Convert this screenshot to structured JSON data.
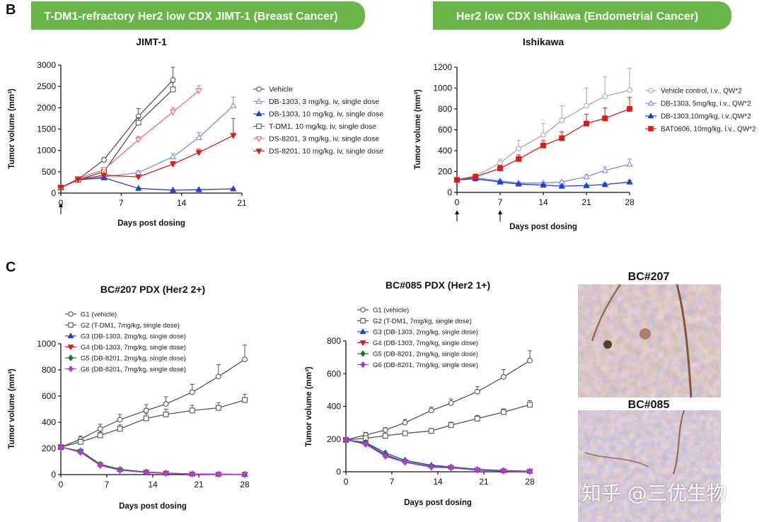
{
  "panels": {
    "B": "B",
    "C": "C"
  },
  "banners": [
    {
      "text": "T-DM1-refractory Her2 low CDX JIMT-1 (Breast Cancer)"
    },
    {
      "text": "Her2 low CDX Ishikawa (Endometrial Cancer)"
    }
  ],
  "ihc": {
    "top_label": "BC#207",
    "bottom_label": "BC#085"
  },
  "watermark": "知乎 @三优生物",
  "colors": {
    "banner": "#6ab547",
    "black": "#444444",
    "blue": "#1f3fd6",
    "lightblue": "#7c8ee6",
    "red": "#e01a1a",
    "lightred": "#f06a6a",
    "green": "#1a7a2a",
    "purple": "#b23ad8"
  },
  "chart_data": [
    {
      "id": "jimt",
      "type": "line",
      "title": "JIMT-1",
      "xlabel": "Days post dosing",
      "ylabel": "Tumor volume (mm³)",
      "xlim": [
        0,
        21
      ],
      "ylim": [
        0,
        3000
      ],
      "xticks": [
        0,
        7,
        14,
        21
      ],
      "yticks": [
        0,
        500,
        1000,
        1500,
        2000,
        2500,
        3000
      ],
      "dosing_arrows": [
        0
      ],
      "series": [
        {
          "name": "Vehicle",
          "color": "#555555",
          "marker": "circle-open",
          "x": [
            0,
            2,
            5,
            9,
            13
          ],
          "y": [
            130,
            320,
            780,
            1800,
            2650
          ],
          "err": [
            15,
            30,
            50,
            180,
            300
          ]
        },
        {
          "name": "DB-1303, 3  mg/kg, iv, single dose",
          "color": "#7c8ee6",
          "marker": "triangle-up-open",
          "x": [
            0,
            2,
            5,
            9,
            13,
            16,
            20
          ],
          "y": [
            130,
            320,
            380,
            480,
            850,
            1300,
            2050
          ],
          "err": [
            15,
            25,
            30,
            40,
            80,
            120,
            200
          ]
        },
        {
          "name": "DB-1303, 10 mg/kg, iv, single dose",
          "color": "#1f3fd6",
          "marker": "triangle-up",
          "x": [
            0,
            2,
            5,
            9,
            13,
            16,
            20
          ],
          "y": [
            130,
            310,
            360,
            110,
            70,
            80,
            100
          ],
          "err": [
            15,
            20,
            25,
            15,
            10,
            10,
            15
          ]
        },
        {
          "name": "T-DM1, 10 mg/kg, iv, single dose",
          "color": "#555555",
          "marker": "square-open",
          "x": [
            0,
            2,
            5,
            9,
            13
          ],
          "y": [
            130,
            310,
            500,
            1650,
            2430
          ],
          "err": [
            15,
            25,
            40,
            120,
            160
          ]
        },
        {
          "name": "DS-8201, 3 mg/kg, iv, single dose",
          "color": "#f06a6a",
          "marker": "triangle-down-open",
          "x": [
            0,
            2,
            5,
            9,
            13,
            16
          ],
          "y": [
            130,
            340,
            550,
            1250,
            1900,
            2400
          ],
          "err": [
            15,
            25,
            40,
            80,
            100,
            120
          ]
        },
        {
          "name": "DS-8201, 10 mg/kg, iv, single dose",
          "color": "#e01a1a",
          "marker": "triangle-down",
          "x": [
            0,
            2,
            5,
            9,
            13,
            16,
            20
          ],
          "y": [
            130,
            320,
            420,
            380,
            680,
            950,
            1350
          ],
          "err": [
            15,
            25,
            35,
            40,
            60,
            80,
            400
          ]
        }
      ]
    },
    {
      "id": "ishikawa",
      "type": "line",
      "title": "Ishikawa",
      "xlabel": "Days post dosing",
      "ylabel": "Tumor volume (mm³)",
      "xlim": [
        0,
        28
      ],
      "ylim": [
        0,
        1200
      ],
      "xticks": [
        0,
        7,
        14,
        21,
        28
      ],
      "yticks": [
        0,
        200,
        400,
        600,
        800,
        1000,
        1200
      ],
      "dosing_arrows": [
        0,
        7
      ],
      "series": [
        {
          "name": "Vehicle control, i.v., QW*2",
          "color": "#aaaaaa",
          "marker": "circle-open",
          "x": [
            0,
            3,
            7,
            10,
            14,
            17,
            21,
            24,
            28
          ],
          "y": [
            120,
            160,
            280,
            420,
            550,
            690,
            830,
            920,
            980
          ],
          "err": [
            10,
            15,
            40,
            80,
            110,
            140,
            170,
            190,
            210
          ]
        },
        {
          "name": "DB-1303, 5mg/kg, i.v., QW*2",
          "color": "#7c8ee6",
          "marker": "triangle-up-open",
          "x": [
            0,
            3,
            7,
            10,
            14,
            17,
            21,
            24,
            28
          ],
          "y": [
            120,
            140,
            110,
            90,
            90,
            100,
            150,
            210,
            270
          ],
          "err": [
            10,
            12,
            12,
            10,
            10,
            12,
            20,
            35,
            50
          ]
        },
        {
          "name": "DB-1303,10mg/kg, i.v.,QW*2",
          "color": "#1f3fd6",
          "marker": "triangle-up",
          "x": [
            0,
            3,
            7,
            10,
            14,
            17,
            21,
            24,
            28
          ],
          "y": [
            120,
            130,
            100,
            80,
            70,
            60,
            65,
            75,
            100
          ],
          "err": [
            10,
            10,
            10,
            8,
            8,
            8,
            8,
            10,
            15
          ]
        },
        {
          "name": "BAT0606, 10mg/kg, i.v., QW*2",
          "color": "#e01a1a",
          "marker": "square",
          "x": [
            0,
            3,
            7,
            10,
            14,
            17,
            21,
            24,
            28
          ],
          "y": [
            120,
            150,
            230,
            320,
            450,
            520,
            660,
            710,
            800
          ],
          "err": [
            10,
            15,
            30,
            40,
            50,
            60,
            90,
            100,
            110
          ]
        }
      ]
    },
    {
      "id": "bc207",
      "type": "line",
      "title": "BC#207 PDX (Her2 2+)",
      "xlabel": "Days post dosing",
      "ylabel": "Tumor volume (mm³)",
      "xlim": [
        0,
        28
      ],
      "ylim": [
        0,
        1000
      ],
      "xticks": [
        0,
        7,
        14,
        21,
        28
      ],
      "yticks": [
        0,
        200,
        400,
        600,
        800,
        1000
      ],
      "dosing_arrows": [],
      "series": [
        {
          "name": "G1 (vehicle)",
          "color": "#555555",
          "marker": "circle-open",
          "x": [
            0,
            3,
            6,
            9,
            13,
            16,
            20,
            24,
            28
          ],
          "y": [
            210,
            270,
            350,
            420,
            490,
            540,
            630,
            750,
            880
          ],
          "err": [
            10,
            25,
            35,
            40,
            45,
            55,
            60,
            90,
            110
          ]
        },
        {
          "name": "G2 (T-DM1, 7mg/kg, single dose)",
          "color": "#555555",
          "marker": "square-open",
          "x": [
            0,
            3,
            6,
            9,
            13,
            16,
            20,
            24,
            28
          ],
          "y": [
            210,
            250,
            300,
            350,
            430,
            460,
            490,
            510,
            570
          ],
          "err": [
            10,
            20,
            25,
            30,
            35,
            40,
            40,
            40,
            45
          ]
        },
        {
          "name": "G3 (DB-1303, 2mg/kg, single dose)",
          "color": "#1f3fd6",
          "marker": "triangle-up",
          "x": [
            0,
            3,
            6,
            9,
            13,
            16,
            20,
            24,
            28
          ],
          "y": [
            210,
            180,
            80,
            40,
            20,
            12,
            5,
            3,
            2
          ],
          "err": [
            10,
            15,
            10,
            6,
            4,
            3,
            2,
            1,
            1
          ]
        },
        {
          "name": "G4 (DB-1303, 7mg/kg, single dose)",
          "color": "#e01a1a",
          "marker": "triangle-down",
          "x": [
            0,
            3,
            6,
            9,
            13,
            16,
            20,
            24,
            28
          ],
          "y": [
            210,
            175,
            75,
            35,
            18,
            10,
            4,
            2,
            1
          ],
          "err": [
            10,
            12,
            8,
            5,
            3,
            2,
            1,
            1,
            1
          ]
        },
        {
          "name": "G5 (DB-8201, 2mg/kg, single dose)",
          "color": "#1a7a2a",
          "marker": "diamond",
          "x": [
            0,
            3,
            6,
            9,
            13,
            16,
            20,
            24,
            28
          ],
          "y": [
            210,
            178,
            78,
            38,
            19,
            11,
            5,
            3,
            2
          ],
          "err": [
            10,
            12,
            8,
            5,
            3,
            2,
            1,
            1,
            1
          ]
        },
        {
          "name": "G6 (DB-8201, 7mg/kg, single dose)",
          "color": "#b23ad8",
          "marker": "diamond",
          "x": [
            0,
            3,
            6,
            9,
            13,
            16,
            20,
            24,
            28
          ],
          "y": [
            210,
            170,
            70,
            33,
            16,
            9,
            4,
            2,
            1
          ],
          "err": [
            10,
            12,
            8,
            5,
            3,
            2,
            1,
            1,
            1
          ]
        }
      ]
    },
    {
      "id": "bc085",
      "type": "line",
      "title": "BC#085 PDX (Her2 1+)",
      "xlabel": "Days post dosing",
      "ylabel": "Tumor volume (mm³)",
      "xlim": [
        0,
        28
      ],
      "ylim": [
        0,
        800
      ],
      "xticks": [
        0,
        7,
        14,
        21,
        28
      ],
      "yticks": [
        0,
        200,
        400,
        600,
        800
      ],
      "dosing_arrows": [],
      "series": [
        {
          "name": "G1 (vehicle)",
          "color": "#555555",
          "marker": "circle-open",
          "x": [
            0,
            3,
            6,
            9,
            13,
            16,
            20,
            24,
            28
          ],
          "y": [
            195,
            225,
            255,
            300,
            375,
            420,
            490,
            580,
            680
          ],
          "err": [
            10,
            15,
            15,
            20,
            20,
            25,
            30,
            45,
            60
          ]
        },
        {
          "name": "G2 (T-DM1, 7mg/kg, single dose)",
          "color": "#555555",
          "marker": "square-open",
          "x": [
            0,
            3,
            6,
            9,
            13,
            16,
            20,
            24,
            28
          ],
          "y": [
            195,
            205,
            220,
            235,
            250,
            285,
            325,
            365,
            410
          ],
          "err": [
            10,
            12,
            12,
            12,
            15,
            18,
            20,
            20,
            25
          ]
        },
        {
          "name": "G3 (DB-1303, 2mg/kg, single dose)",
          "color": "#1f3fd6",
          "marker": "triangle-up",
          "x": [
            0,
            3,
            6,
            9,
            13,
            16,
            20,
            24,
            28
          ],
          "y": [
            195,
            180,
            115,
            70,
            40,
            30,
            15,
            8,
            4
          ],
          "err": [
            10,
            12,
            10,
            8,
            6,
            5,
            3,
            2,
            1
          ]
        },
        {
          "name": "G4 (DB-1303, 7mg/kg, single dose)",
          "color": "#e01a1a",
          "marker": "triangle-down",
          "x": [
            0,
            3,
            6,
            9,
            13,
            16,
            20,
            24,
            28
          ],
          "y": [
            195,
            170,
            100,
            60,
            30,
            25,
            10,
            5,
            3
          ],
          "err": [
            10,
            10,
            10,
            6,
            5,
            4,
            2,
            1,
            1
          ]
        },
        {
          "name": "G5 (DB-8201, 2mg/kg, single dose)",
          "color": "#1a7a2a",
          "marker": "diamond",
          "x": [
            0,
            3,
            6,
            9,
            13,
            16,
            20,
            24,
            28
          ],
          "y": [
            195,
            175,
            105,
            62,
            33,
            27,
            12,
            6,
            3
          ],
          "err": [
            10,
            10,
            10,
            6,
            5,
            4,
            2,
            1,
            1
          ]
        },
        {
          "name": "G6 (DB-8201, 7mg/kg, single dose)",
          "color": "#b23ad8",
          "marker": "diamond",
          "x": [
            0,
            3,
            6,
            9,
            13,
            16,
            20,
            24,
            28
          ],
          "y": [
            195,
            168,
            95,
            58,
            28,
            24,
            10,
            5,
            2
          ],
          "err": [
            10,
            10,
            10,
            6,
            5,
            4,
            2,
            1,
            1
          ]
        }
      ]
    }
  ]
}
